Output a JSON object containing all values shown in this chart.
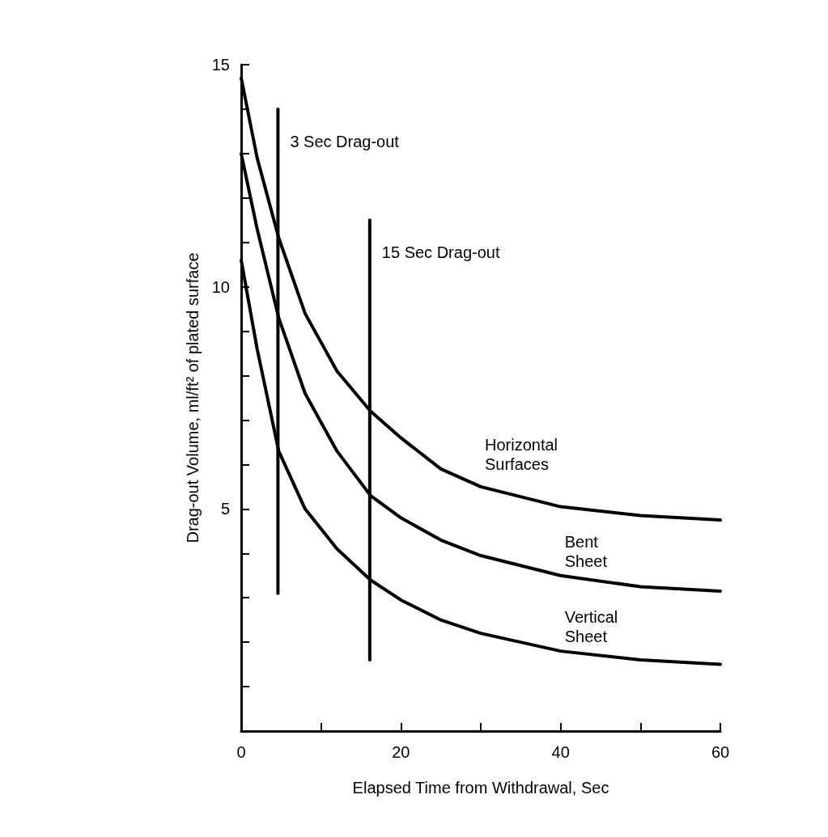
{
  "chart_data": {
    "type": "line",
    "xlabel": "Elapsed Time from Withdrawal, Sec",
    "ylabel": "Drag-out Volume, ml/ft² of plated surface",
    "xlim": [
      0,
      60
    ],
    "xticks": [
      0,
      {
        "value": 10,
        "label": null
      },
      20,
      {
        "value": 30,
        "label": null
      },
      40,
      {
        "value": 50,
        "label": null
      },
      60
    ],
    "ylim": [
      0,
      15
    ],
    "yticks": [
      {
        "value": 0,
        "label": null
      },
      {
        "value": 1,
        "label": null
      },
      {
        "value": 2,
        "label": null
      },
      {
        "value": 3,
        "label": null
      },
      {
        "value": 4,
        "label": null
      },
      5,
      {
        "value": 6,
        "label": null
      },
      {
        "value": 7,
        "label": null
      },
      {
        "value": 8,
        "label": null
      },
      {
        "value": 9,
        "label": null
      },
      10,
      {
        "value": 11,
        "label": null
      },
      {
        "value": 12,
        "label": null
      },
      {
        "value": 13,
        "label": null
      },
      {
        "value": 14,
        "label": null
      },
      15
    ],
    "grid": false,
    "legend": false,
    "marker": "none",
    "line_style": "solid",
    "series": [
      {
        "name": "Horizontal Surfaces",
        "color": "#000000",
        "x": [
          0,
          2,
          4.7,
          8,
          12,
          16.2,
          20,
          25,
          30,
          40,
          50,
          60
        ],
        "values": [
          14.7,
          12.9,
          11.1,
          9.4,
          8.1,
          7.2,
          6.6,
          5.9,
          5.5,
          5.05,
          4.85,
          4.75
        ]
      },
      {
        "name": "Bent Sheet",
        "color": "#000000",
        "x": [
          0,
          2,
          4.7,
          8,
          12,
          16.2,
          20,
          25,
          30,
          40,
          50,
          60
        ],
        "values": [
          13.0,
          11.3,
          9.3,
          7.6,
          6.3,
          5.3,
          4.8,
          4.3,
          3.95,
          3.5,
          3.25,
          3.15
        ]
      },
      {
        "name": "Vertical Sheet",
        "color": "#000000",
        "x": [
          0,
          2,
          4.7,
          8,
          12,
          16.2,
          20,
          25,
          30,
          40,
          50,
          60
        ],
        "values": [
          10.6,
          8.6,
          6.3,
          5.0,
          4.1,
          3.4,
          2.95,
          2.5,
          2.2,
          1.8,
          1.6,
          1.5
        ]
      },
      {
        "name": "3 Sec Drag-out",
        "color": "#000000",
        "x": [
          4.6,
          4.6
        ],
        "values": [
          14.0,
          3.1
        ]
      },
      {
        "name": "15 Sec Drag-out",
        "color": "#000000",
        "x": [
          16.1,
          16.1
        ],
        "values": [
          11.5,
          1.6
        ]
      }
    ]
  }
}
